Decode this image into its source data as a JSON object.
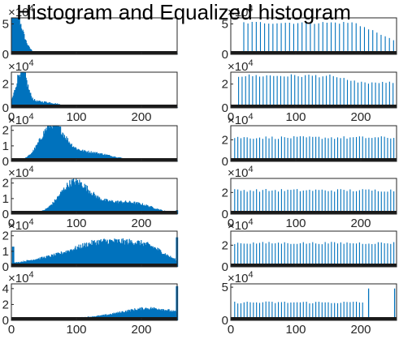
{
  "figure": {
    "title": "Histogram and Equalized histogram",
    "bar_color": "#0072BD",
    "axis_color": "#262626"
  },
  "chart_data": [
    {
      "type": "bar",
      "panel": "original",
      "row": 1,
      "xlim": [
        0,
        255
      ],
      "ylim": [
        0,
        60000
      ],
      "yticks": [
        0,
        5
      ],
      "ytick_scale": "×10^4",
      "xticks": [],
      "peaks": [
        {
          "center": 4,
          "width": 10,
          "height": 58000
        },
        {
          "center": 10,
          "width": 14,
          "height": 14000
        }
      ],
      "base": 500,
      "jitter": 0.25,
      "edge_spikes": []
    },
    {
      "type": "bar",
      "panel": "equalized",
      "row": 1,
      "xlim": [
        0,
        255
      ],
      "ylim": [
        0,
        60000
      ],
      "yticks": [
        0,
        5
      ],
      "ytick_scale": "×10^4",
      "xticks": [],
      "eq": {
        "count": 38,
        "start": 20,
        "step": 6.4,
        "base": 52000,
        "drop_start": 190,
        "drop_end": 255,
        "drop_to": 21000,
        "jitter": 0.08
      }
    },
    {
      "type": "bar",
      "panel": "original",
      "row": 2,
      "xlim": [
        0,
        255
      ],
      "ylim": [
        0,
        30000
      ],
      "yticks": [
        0,
        2
      ],
      "ytick_scale": "×10^4",
      "xticks": [
        0,
        100,
        200
      ],
      "peaks": [
        {
          "center": 15,
          "width": 8,
          "height": 29000
        },
        {
          "center": 40,
          "width": 30,
          "height": 5000
        }
      ],
      "base": 300,
      "jitter": 0.3,
      "edge_spikes": []
    },
    {
      "type": "bar",
      "panel": "equalized",
      "row": 2,
      "xlim": [
        0,
        255
      ],
      "ylim": [
        0,
        30000
      ],
      "yticks": [
        0,
        2
      ],
      "ytick_scale": "×10^4",
      "xticks": [
        0,
        100,
        200
      ],
      "eq": {
        "count": 45,
        "start": 12,
        "step": 5.4,
        "base": 27000,
        "drop_start": 150,
        "drop_end": 200,
        "drop_to": 21000,
        "jitter": 0.1
      }
    },
    {
      "type": "bar",
      "panel": "original",
      "row": 3,
      "xlim": [
        0,
        255
      ],
      "ylim": [
        0,
        23000
      ],
      "yticks": [
        0,
        1,
        2
      ],
      "ytick_scale": "×10^4",
      "xticks": [],
      "peaks": [
        {
          "center": 62,
          "width": 18,
          "height": 21000
        },
        {
          "center": 110,
          "width": 40,
          "height": 6000
        }
      ],
      "base": 200,
      "jitter": 0.25,
      "edge_spikes": []
    },
    {
      "type": "bar",
      "panel": "equalized",
      "row": 3,
      "xlim": [
        0,
        255
      ],
      "ylim": [
        0,
        33000
      ],
      "yticks": [
        0,
        2
      ],
      "ytick_scale": "×10^4",
      "xticks": [],
      "eq": {
        "count": 52,
        "start": 6,
        "step": 4.8,
        "base": 22000,
        "drop_start": 999,
        "drop_end": 999,
        "drop_to": 22000,
        "jitter": 0.12
      }
    },
    {
      "type": "bar",
      "panel": "original",
      "row": 4,
      "xlim": [
        0,
        255
      ],
      "ylim": [
        0,
        23000
      ],
      "yticks": [
        0,
        1,
        2
      ],
      "ytick_scale": "×10^4",
      "xticks": [
        0,
        100,
        200
      ],
      "peaks": [
        {
          "center": 95,
          "width": 22,
          "height": 18000
        },
        {
          "center": 150,
          "width": 40,
          "height": 7000
        },
        {
          "center": 200,
          "width": 25,
          "height": 3000
        }
      ],
      "base": 200,
      "jitter": 0.25,
      "edge_spikes": [
        {
          "x": 254,
          "height": 2500
        }
      ]
    },
    {
      "type": "bar",
      "panel": "equalized",
      "row": 4,
      "xlim": [
        0,
        255
      ],
      "ylim": [
        0,
        33000
      ],
      "yticks": [
        0,
        2
      ],
      "ytick_scale": "×10^4",
      "xticks": [
        0,
        100,
        200
      ],
      "eq": {
        "count": 52,
        "start": 6,
        "step": 4.8,
        "base": 22000,
        "drop_start": 999,
        "drop_end": 999,
        "drop_to": 22000,
        "jitter": 0.12
      }
    },
    {
      "type": "bar",
      "panel": "original",
      "row": 5,
      "xlim": [
        0,
        255
      ],
      "ylim": [
        0,
        23000
      ],
      "yticks": [
        0,
        1,
        2
      ],
      "ytick_scale": "×10^4",
      "xticks": [],
      "peaks": [
        {
          "center": 140,
          "width": 45,
          "height": 15000
        },
        {
          "center": 210,
          "width": 30,
          "height": 9000
        },
        {
          "center": 50,
          "width": 40,
          "height": 3500
        }
      ],
      "base": 600,
      "jitter": 0.25,
      "edge_spikes": [
        {
          "x": 2,
          "height": 13000
        },
        {
          "x": 254,
          "height": 19000
        }
      ]
    },
    {
      "type": "bar",
      "panel": "equalized",
      "row": 5,
      "xlim": [
        0,
        255
      ],
      "ylim": [
        0,
        33000
      ],
      "yticks": [
        0,
        2
      ],
      "ytick_scale": "×10^4",
      "xticks": [],
      "eq": {
        "count": 52,
        "start": 6,
        "step": 4.8,
        "base": 22000,
        "drop_start": 999,
        "drop_end": 999,
        "drop_to": 22000,
        "jitter": 0.1
      }
    },
    {
      "type": "bar",
      "panel": "original",
      "row": 6,
      "xlim": [
        0,
        255
      ],
      "ylim": [
        0,
        46000
      ],
      "yticks": [
        0,
        2,
        4
      ],
      "ytick_scale": "×10^4",
      "xticks": [
        0,
        100,
        200
      ],
      "peaks": [
        {
          "center": 215,
          "width": 45,
          "height": 14000
        },
        {
          "center": 120,
          "width": 60,
          "height": 2500
        }
      ],
      "base": 500,
      "jitter": 0.25,
      "edge_spikes": [
        {
          "x": 254,
          "height": 43000
        }
      ]
    },
    {
      "type": "bar",
      "panel": "equalized",
      "row": 6,
      "xlim": [
        0,
        255
      ],
      "ylim": [
        0,
        55000
      ],
      "yticks": [
        0,
        5
      ],
      "ytick_scale": "×10^4",
      "xticks": [
        0,
        100,
        200
      ],
      "eq": {
        "count": 42,
        "start": 6,
        "step": 4.8,
        "base": 27000,
        "drop_start": 205,
        "drop_end": 255,
        "drop_to": 0,
        "jitter": 0.12,
        "spikes": [
          {
            "x": 212,
            "height": 48000
          },
          {
            "x": 252,
            "height": 48000
          }
        ]
      }
    }
  ]
}
